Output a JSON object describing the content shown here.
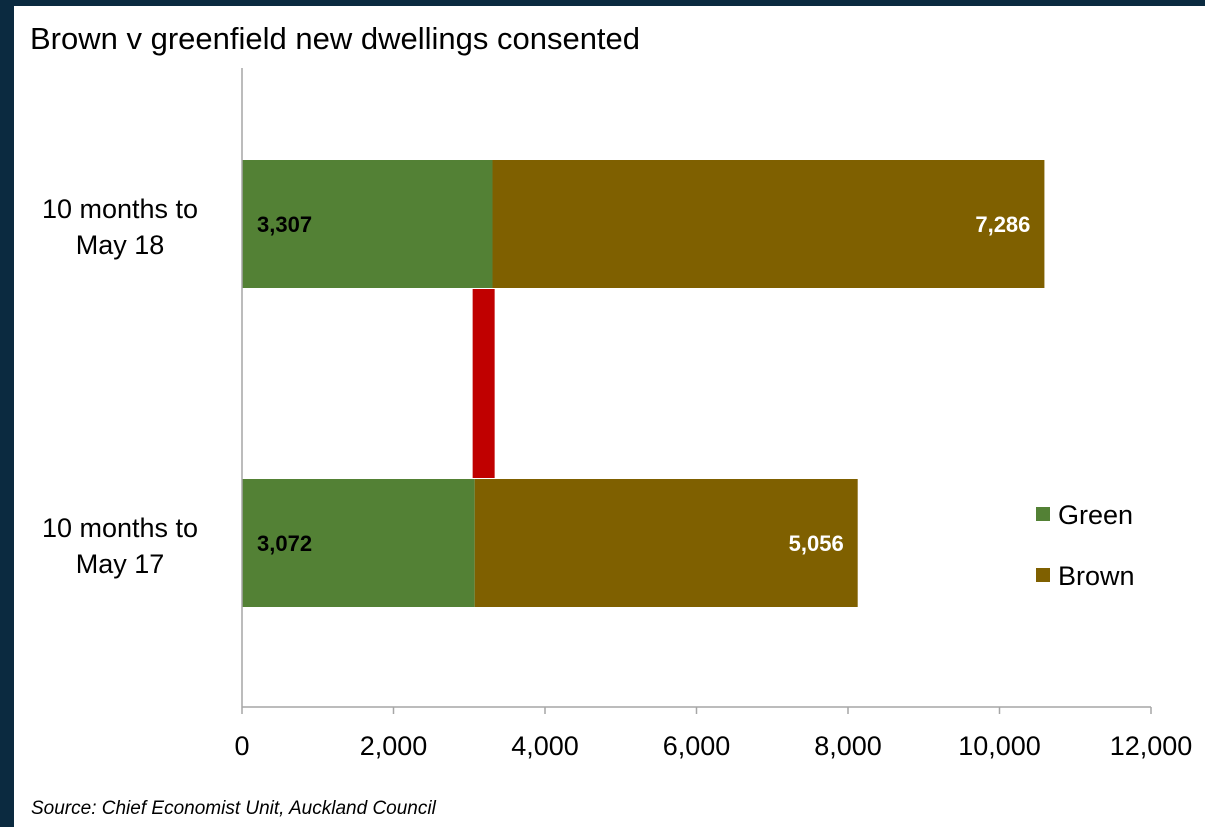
{
  "chart_data": {
    "type": "bar",
    "orientation": "horizontal",
    "stacked": true,
    "title": "Brown v greenfield new dwellings consented",
    "categories": [
      "10 months to May 18",
      "10 months to May 17"
    ],
    "category_lines": [
      [
        "10 months to",
        "May 18"
      ],
      [
        "10 months to",
        "May 17"
      ]
    ],
    "series": [
      {
        "name": "Green",
        "values": [
          3307,
          3072
        ],
        "labels": [
          "3,307",
          "3,072"
        ],
        "color": "#538135",
        "label_color": "#000000"
      },
      {
        "name": "Brown",
        "values": [
          7286,
          5056
        ],
        "labels": [
          "7,286",
          "5,056"
        ],
        "color": "#7f6000",
        "label_color": "#ffffff"
      }
    ],
    "xlim": [
      0,
      12000
    ],
    "xticks": [
      0,
      2000,
      4000,
      6000,
      8000,
      10000,
      12000
    ],
    "xtick_labels": [
      "0",
      "2,000",
      "4,000",
      "6,000",
      "8,000",
      "10,000",
      "12,000"
    ],
    "grid": false,
    "legend": {
      "position": "right",
      "entries": [
        "Green",
        "Brown"
      ]
    },
    "connector": {
      "x": 3190,
      "color": "#c00000"
    },
    "source": "Source: Chief Economist Unit, Auckland Council"
  }
}
